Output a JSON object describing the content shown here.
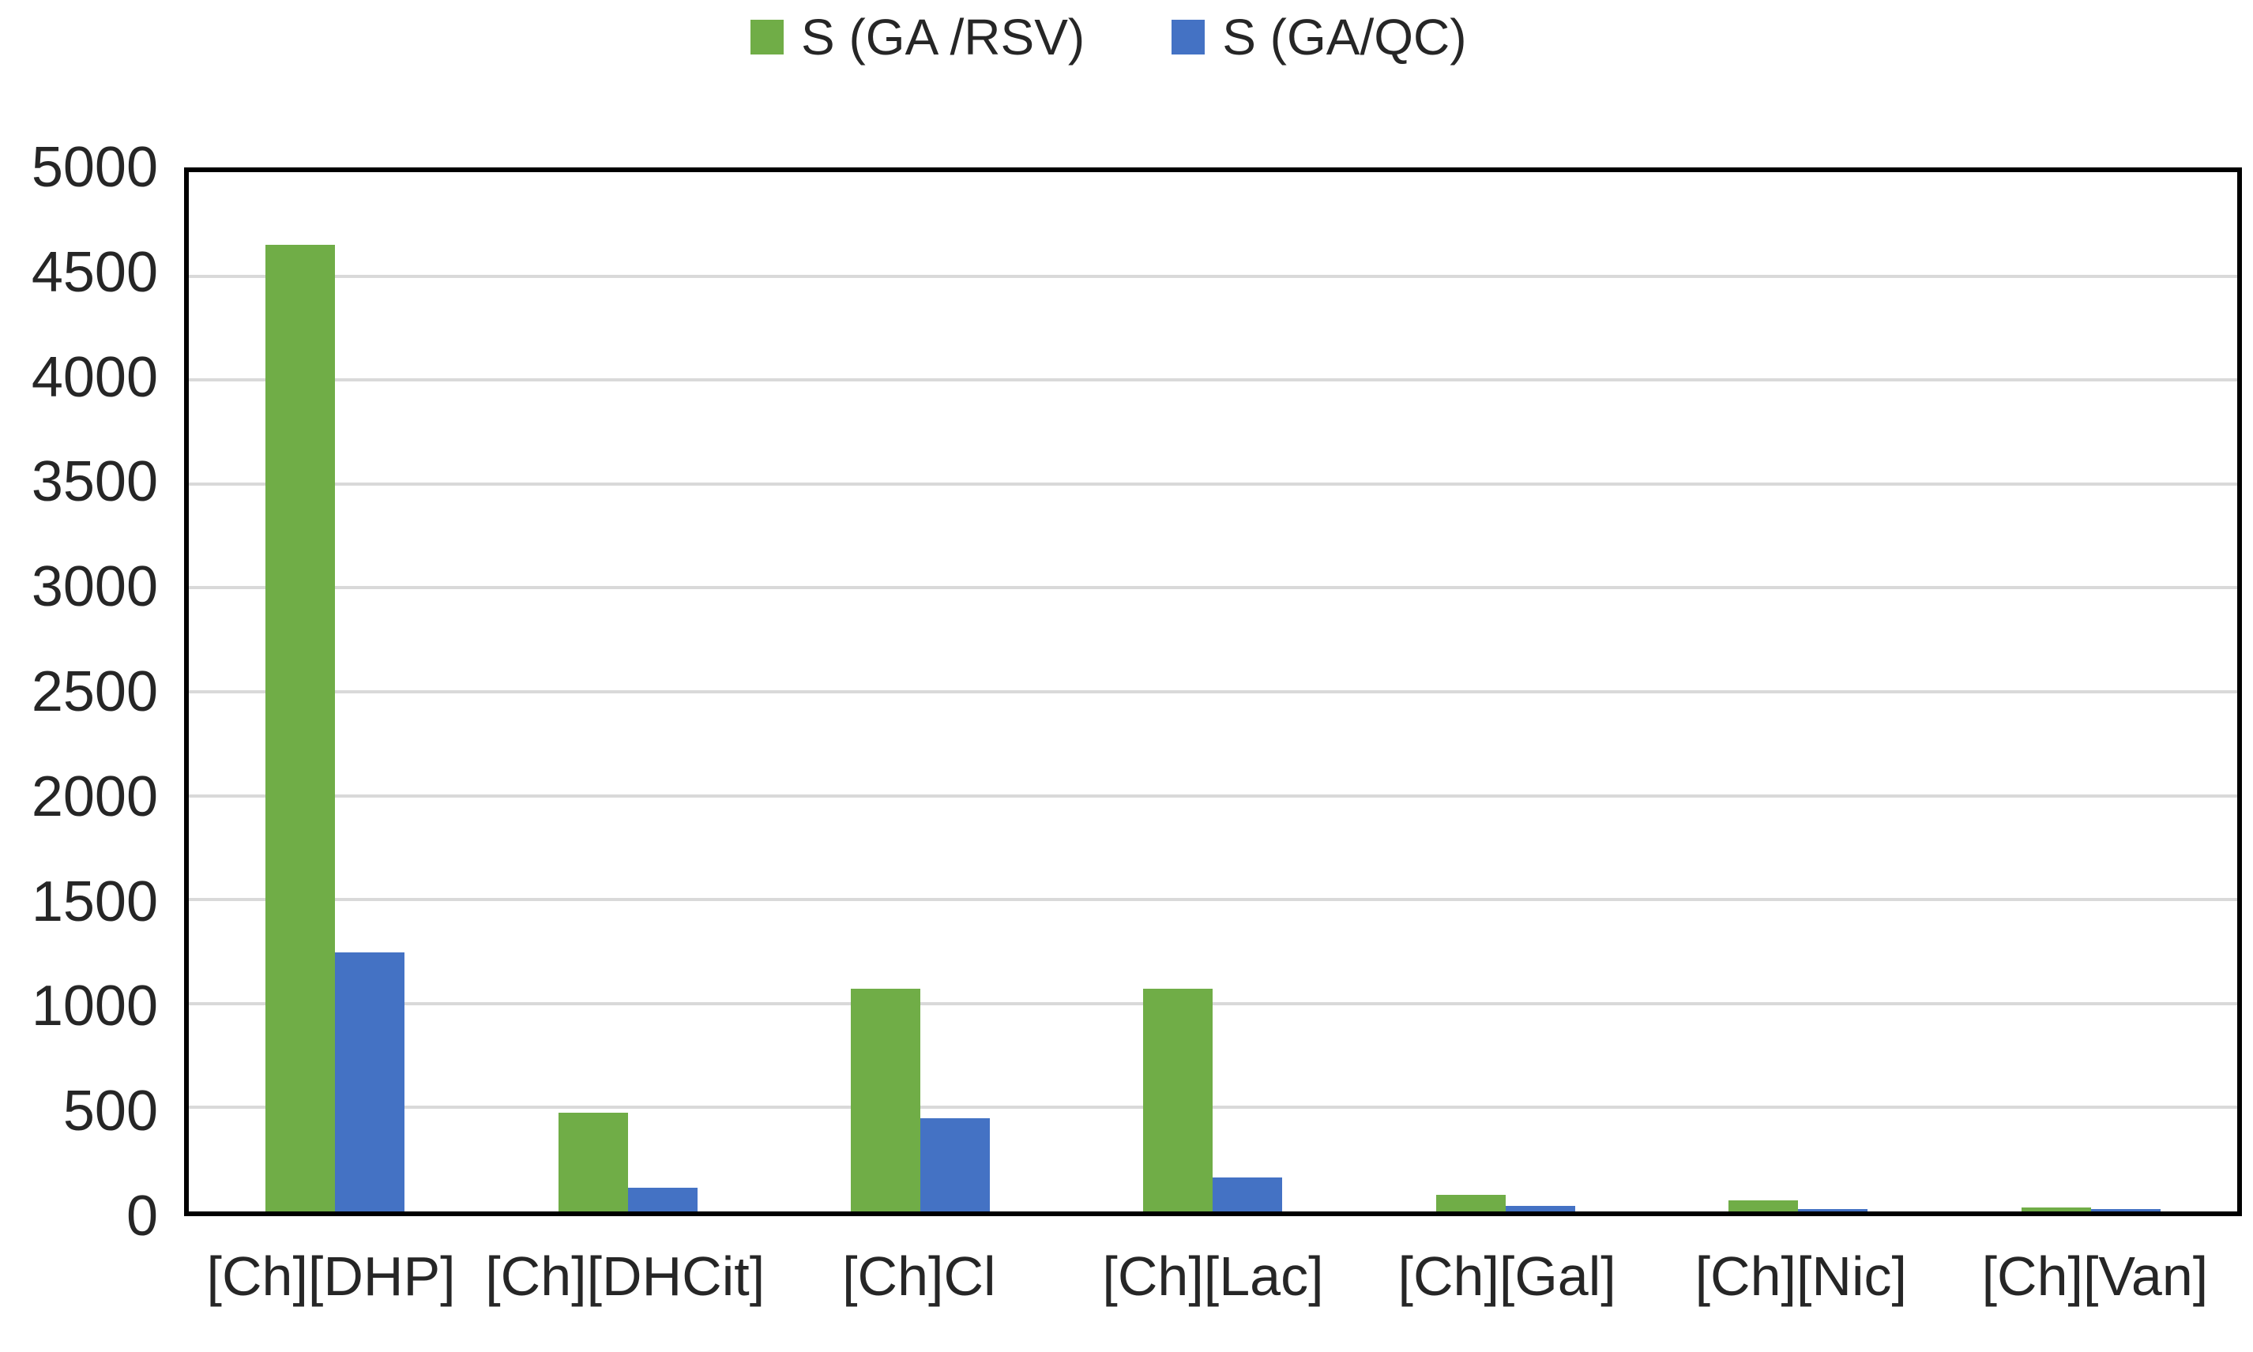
{
  "chart_data": {
    "type": "bar",
    "title": "",
    "xlabel": "",
    "ylabel": "",
    "categories": [
      "[Ch][DHP]",
      "[Ch][DHCit]",
      "[Ch]Cl",
      "[Ch][Lac]",
      "[Ch][Gal]",
      "[Ch][Nic]",
      "[Ch][Van]"
    ],
    "series": [
      {
        "name": "S (GA /RSV)",
        "color": "#70AD47",
        "values": [
          4650,
          475,
          1070,
          1070,
          80,
          55,
          20
        ]
      },
      {
        "name": "S (GA/QC)",
        "color": "#4472C4",
        "values": [
          1245,
          115,
          450,
          165,
          25,
          10,
          10
        ]
      }
    ],
    "ylim": [
      0,
      5000
    ],
    "yticks": [
      0,
      500,
      1000,
      1500,
      2000,
      2500,
      3000,
      3500,
      4000,
      4500,
      5000
    ],
    "grid": "horizontal",
    "gridline_color": "#D9D9D9",
    "axis_border_color": "#000000",
    "legend_position": "top"
  }
}
